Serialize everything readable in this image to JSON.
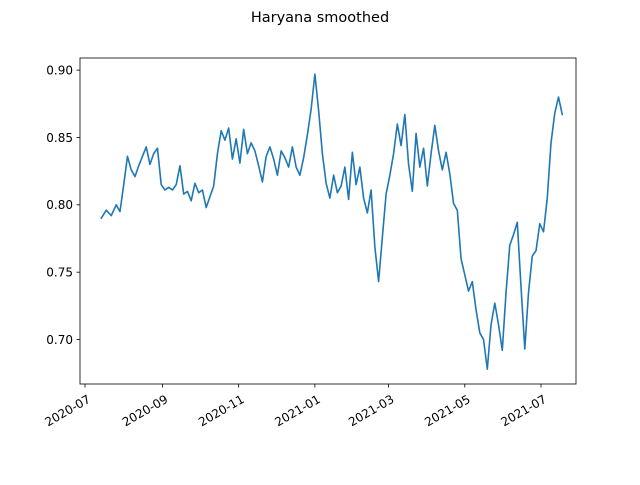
{
  "chart_data": {
    "type": "line",
    "title": "Haryana smoothed",
    "xlabel": "",
    "ylabel": "",
    "xlim": [
      "2020-06-27",
      "2021-07-29"
    ],
    "ylim": [
      0.667,
      0.909
    ],
    "grid": false,
    "legend": "none",
    "line_color": "#1f77b4",
    "x_ticks": [
      {
        "date": "2020-07-01",
        "label": "2020-07"
      },
      {
        "date": "2020-09-01",
        "label": "2020-09"
      },
      {
        "date": "2020-11-01",
        "label": "2020-11"
      },
      {
        "date": "2021-01-01",
        "label": "2021-01"
      },
      {
        "date": "2021-03-01",
        "label": "2021-03"
      },
      {
        "date": "2021-05-01",
        "label": "2021-05"
      },
      {
        "date": "2021-07-01",
        "label": "2021-07"
      }
    ],
    "y_ticks": [
      {
        "value": 0.7,
        "label": "0.70"
      },
      {
        "value": 0.75,
        "label": "0.75"
      },
      {
        "value": 0.8,
        "label": "0.80"
      },
      {
        "value": 0.85,
        "label": "0.85"
      },
      {
        "value": 0.9,
        "label": "0.90"
      }
    ],
    "series": [
      {
        "x": [
          "2020-07-14",
          "2020-07-18",
          "2020-07-22",
          "2020-07-26",
          "2020-07-29",
          "2020-08-01",
          "2020-08-04",
          "2020-08-07",
          "2020-08-10",
          "2020-08-13",
          "2020-08-16",
          "2020-08-19",
          "2020-08-22",
          "2020-08-25",
          "2020-08-28",
          "2020-08-31",
          "2020-09-03",
          "2020-09-06",
          "2020-09-09",
          "2020-09-12",
          "2020-09-15",
          "2020-09-18",
          "2020-09-21",
          "2020-09-24",
          "2020-09-27",
          "2020-09-30",
          "2020-10-03",
          "2020-10-06",
          "2020-10-09",
          "2020-10-12",
          "2020-10-15",
          "2020-10-18",
          "2020-10-21",
          "2020-10-24",
          "2020-10-27",
          "2020-10-30",
          "2020-11-02",
          "2020-11-05",
          "2020-11-08",
          "2020-11-11",
          "2020-11-14",
          "2020-11-17",
          "2020-11-20",
          "2020-11-23",
          "2020-11-26",
          "2020-11-29",
          "2020-12-02",
          "2020-12-05",
          "2020-12-08",
          "2020-12-11",
          "2020-12-14",
          "2020-12-17",
          "2020-12-20",
          "2020-12-23",
          "2020-12-26",
          "2020-12-29",
          "2021-01-01",
          "2021-01-04",
          "2021-01-07",
          "2021-01-10",
          "2021-01-13",
          "2021-01-16",
          "2021-01-19",
          "2021-01-22",
          "2021-01-25",
          "2021-01-28",
          "2021-01-31",
          "2021-02-03",
          "2021-02-06",
          "2021-02-09",
          "2021-02-12",
          "2021-02-15",
          "2021-02-18",
          "2021-02-21",
          "2021-02-24",
          "2021-02-27",
          "2021-03-02",
          "2021-03-05",
          "2021-03-08",
          "2021-03-11",
          "2021-03-14",
          "2021-03-17",
          "2021-03-20",
          "2021-03-23",
          "2021-03-26",
          "2021-03-29",
          "2021-04-01",
          "2021-04-04",
          "2021-04-07",
          "2021-04-10",
          "2021-04-13",
          "2021-04-16",
          "2021-04-19",
          "2021-04-22",
          "2021-04-25",
          "2021-04-28",
          "2021-05-01",
          "2021-05-04",
          "2021-05-07",
          "2021-05-10",
          "2021-05-13",
          "2021-05-16",
          "2021-05-19",
          "2021-05-22",
          "2021-05-25",
          "2021-05-28",
          "2021-05-31",
          "2021-06-03",
          "2021-06-06",
          "2021-06-09",
          "2021-06-12",
          "2021-06-15",
          "2021-06-18",
          "2021-06-21",
          "2021-06-24",
          "2021-06-27",
          "2021-06-30",
          "2021-07-03",
          "2021-07-06",
          "2021-07-09",
          "2021-07-12",
          "2021-07-15",
          "2021-07-18"
        ],
        "values": [
          0.79,
          0.796,
          0.792,
          0.8,
          0.795,
          0.815,
          0.836,
          0.826,
          0.821,
          0.829,
          0.836,
          0.843,
          0.83,
          0.838,
          0.842,
          0.815,
          0.811,
          0.813,
          0.811,
          0.815,
          0.829,
          0.808,
          0.81,
          0.803,
          0.816,
          0.809,
          0.811,
          0.798,
          0.806,
          0.814,
          0.838,
          0.855,
          0.848,
          0.857,
          0.834,
          0.849,
          0.831,
          0.856,
          0.838,
          0.846,
          0.84,
          0.829,
          0.817,
          0.836,
          0.843,
          0.834,
          0.822,
          0.84,
          0.835,
          0.828,
          0.843,
          0.828,
          0.822,
          0.835,
          0.852,
          0.871,
          0.897,
          0.87,
          0.838,
          0.816,
          0.805,
          0.822,
          0.809,
          0.814,
          0.828,
          0.804,
          0.839,
          0.815,
          0.828,
          0.805,
          0.794,
          0.811,
          0.769,
          0.743,
          0.776,
          0.808,
          0.822,
          0.838,
          0.86,
          0.844,
          0.867,
          0.83,
          0.81,
          0.853,
          0.828,
          0.842,
          0.814,
          0.838,
          0.859,
          0.84,
          0.826,
          0.839,
          0.823,
          0.801,
          0.796,
          0.76,
          0.748,
          0.736,
          0.743,
          0.722,
          0.705,
          0.7,
          0.678,
          0.711,
          0.727,
          0.711,
          0.692,
          0.735,
          0.77,
          0.778,
          0.787,
          0.739,
          0.693,
          0.735,
          0.762,
          0.766,
          0.786,
          0.78,
          0.805,
          0.846,
          0.868,
          0.88,
          0.867
        ]
      }
    ]
  }
}
